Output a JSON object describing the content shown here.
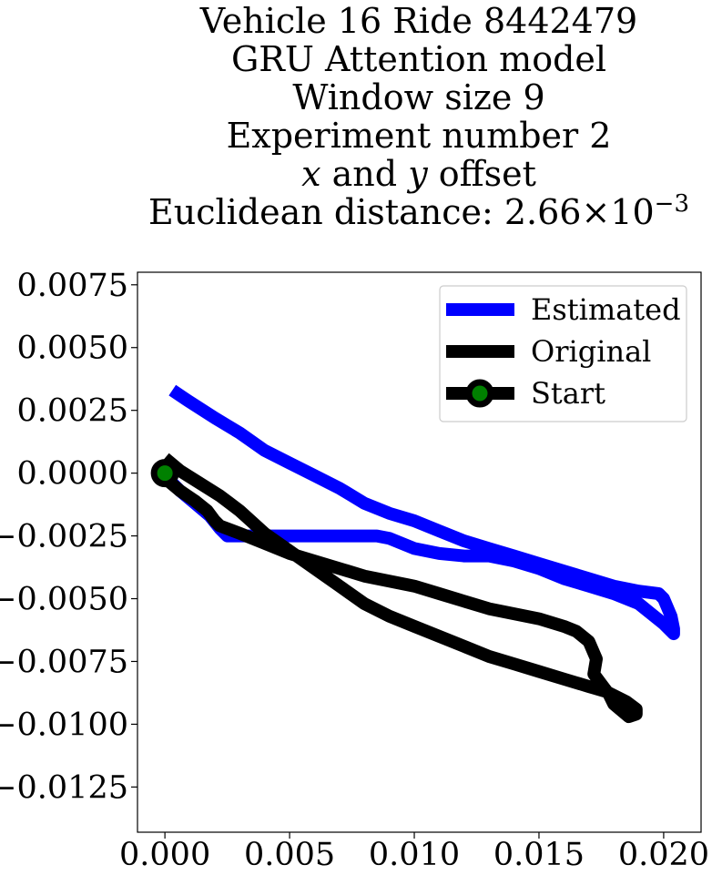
{
  "chart_data": {
    "type": "line",
    "title_lines": [
      "Vehicle 16 Ride 8442479",
      "GRU Attention model",
      "Window size 9",
      "Experiment number 2"
    ],
    "title_offset_parts": {
      "x": "x",
      "and": " and ",
      "y": "y",
      "rest": " offset"
    },
    "title_distance": {
      "prefix": "Euclidean distance: ",
      "mantissa": "2.66",
      "times": "×",
      "base": "10",
      "exponent": "−3"
    },
    "xlim": [
      -0.0011,
      0.0215
    ],
    "ylim": [
      -0.0143,
      0.008
    ],
    "x_ticks": [
      {
        "value": 0.0,
        "label": "0.000"
      },
      {
        "value": 0.005,
        "label": "0.005"
      },
      {
        "value": 0.01,
        "label": "0.010"
      },
      {
        "value": 0.015,
        "label": "0.015"
      },
      {
        "value": 0.02,
        "label": "0.020"
      }
    ],
    "y_ticks": [
      {
        "value": 0.0075,
        "label": "0.0075"
      },
      {
        "value": 0.005,
        "label": "0.0050"
      },
      {
        "value": 0.0025,
        "label": "0.0025"
      },
      {
        "value": 0.0,
        "label": "0.0000"
      },
      {
        "value": -0.0025,
        "label": "−0.0025"
      },
      {
        "value": -0.005,
        "label": "−0.0050"
      },
      {
        "value": -0.0075,
        "label": "−0.0075"
      },
      {
        "value": -0.01,
        "label": "−0.0100"
      },
      {
        "value": -0.0125,
        "label": "−0.0125"
      }
    ],
    "legend_position": "top-right",
    "series": [
      {
        "name": "Estimated",
        "color": "#0000ff",
        "x": [
          0.0003,
          0.0009,
          0.002,
          0.003,
          0.004,
          0.005,
          0.006,
          0.007,
          0.008,
          0.009,
          0.01,
          0.011,
          0.012,
          0.013,
          0.014,
          0.015,
          0.016,
          0.017,
          0.018,
          0.019,
          0.0198,
          0.02,
          0.0203,
          0.0204,
          0.0204,
          0.02,
          0.0195,
          0.019,
          0.018,
          0.017,
          0.016,
          0.015,
          0.014,
          0.013,
          0.012,
          0.011,
          0.01,
          0.009,
          0.0085,
          0.0075,
          0.006,
          0.0045,
          0.003,
          0.0025,
          0.0022,
          0.0018,
          0.0012,
          0.0006,
          0.0
        ],
        "y": [
          0.0033,
          0.0029,
          0.0022,
          0.0016,
          0.0009,
          0.0004,
          -0.0001,
          -0.0006,
          -0.0012,
          -0.0016,
          -0.0019,
          -0.0023,
          -0.0027,
          -0.003,
          -0.0033,
          -0.0036,
          -0.0039,
          -0.0042,
          -0.0045,
          -0.0047,
          -0.0048,
          -0.005,
          -0.0057,
          -0.0062,
          -0.0064,
          -0.006,
          -0.0056,
          -0.0052,
          -0.0048,
          -0.0045,
          -0.0042,
          -0.0038,
          -0.0035,
          -0.0033,
          -0.0033,
          -0.0032,
          -0.003,
          -0.0026,
          -0.0025,
          -0.0025,
          -0.0025,
          -0.0025,
          -0.0025,
          -0.0025,
          -0.0022,
          -0.0017,
          -0.0012,
          -0.0007,
          -0.0001
        ]
      },
      {
        "name": "Original",
        "color": "#000000",
        "x": [
          0.0,
          0.0006,
          0.0014,
          0.0022,
          0.003,
          0.004,
          0.005,
          0.006,
          0.007,
          0.008,
          0.009,
          0.01,
          0.011,
          0.012,
          0.013,
          0.014,
          0.015,
          0.016,
          0.017,
          0.0177,
          0.0185,
          0.0189,
          0.0189,
          0.0186,
          0.018,
          0.0178,
          0.0175,
          0.0172,
          0.0173,
          0.017,
          0.0165,
          0.016,
          0.015,
          0.014,
          0.013,
          0.012,
          0.011,
          0.01,
          0.009,
          0.008,
          0.007,
          0.006,
          0.005,
          0.004,
          0.003,
          0.0022,
          0.002,
          0.0017,
          0.0012,
          0.0006,
          0.0
        ],
        "y": [
          0.0006,
          0.0001,
          -0.0004,
          -0.0009,
          -0.0015,
          -0.0024,
          -0.0031,
          -0.0038,
          -0.0045,
          -0.0052,
          -0.0057,
          -0.0061,
          -0.0065,
          -0.0069,
          -0.0073,
          -0.0076,
          -0.0079,
          -0.0082,
          -0.0085,
          -0.0087,
          -0.0091,
          -0.0094,
          -0.0096,
          -0.0097,
          -0.0092,
          -0.0088,
          -0.0084,
          -0.008,
          -0.0074,
          -0.0067,
          -0.0063,
          -0.0061,
          -0.0058,
          -0.0056,
          -0.0054,
          -0.0051,
          -0.0048,
          -0.0045,
          -0.0043,
          -0.0041,
          -0.0038,
          -0.0035,
          -0.0032,
          -0.0028,
          -0.0024,
          -0.0021,
          -0.0019,
          -0.0015,
          -0.0011,
          -0.0007,
          -0.0002
        ]
      }
    ],
    "start_point": {
      "name": "Start",
      "x": 0.0,
      "y": 0.0,
      "edge_color": "#000000",
      "face_color": "#008000"
    }
  }
}
